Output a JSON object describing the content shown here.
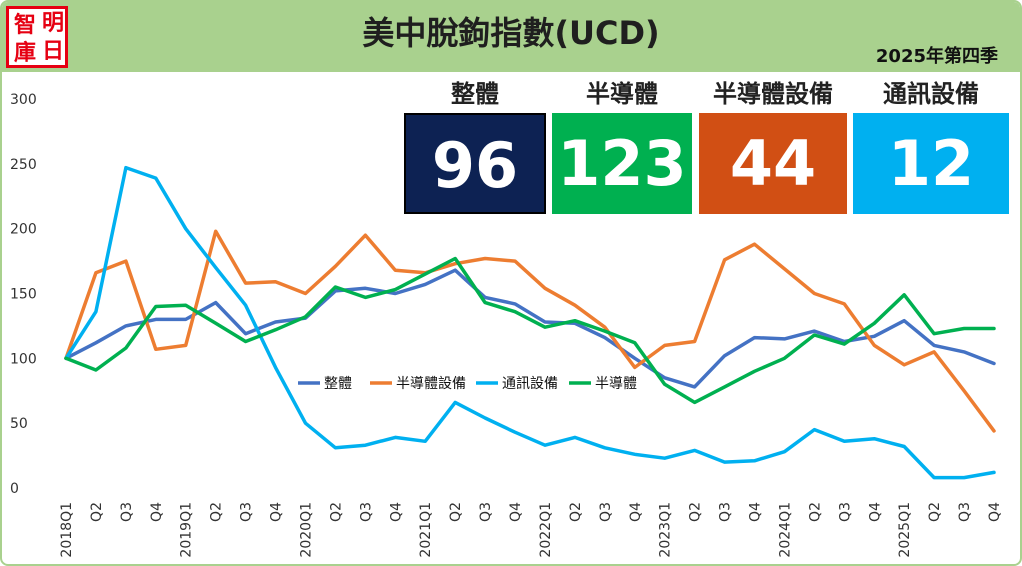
{
  "header": {
    "logo_chars": [
      "明",
      "智",
      "日",
      "庫"
    ],
    "title": "美中脫鉤指數(UCD)",
    "period": "2025年第四季"
  },
  "cards": [
    {
      "label": "整體",
      "value": "96",
      "color": "#0d2253"
    },
    {
      "label": "半導體",
      "value": "123",
      "color": "#00b050"
    },
    {
      "label": "半導體設備",
      "value": "44",
      "color": "#d14f14"
    },
    {
      "label": "通訊設備",
      "value": "12",
      "color": "#00b0f0"
    }
  ],
  "chart_data": {
    "type": "line",
    "x": [
      "2018Q1",
      "Q2",
      "Q3",
      "Q4",
      "2019Q1",
      "Q2",
      "Q3",
      "Q4",
      "2020Q1",
      "Q2",
      "Q3",
      "Q4",
      "2021Q1",
      "Q2",
      "Q3",
      "Q4",
      "2022Q1",
      "Q2",
      "Q3",
      "Q4",
      "2023Q1",
      "Q2",
      "Q3",
      "Q4",
      "2024Q1",
      "Q2",
      "Q3",
      "Q4",
      "2025Q1",
      "Q2",
      "Q3",
      "Q4"
    ],
    "ylim": [
      0,
      300
    ],
    "yticks": [
      0,
      50,
      100,
      150,
      200,
      250,
      300
    ],
    "legend_position": "center-left",
    "series": [
      {
        "name": "整體",
        "color": "#4472c4",
        "values": [
          100,
          112,
          125,
          130,
          130,
          143,
          119,
          128,
          131,
          152,
          154,
          150,
          157,
          168,
          147,
          142,
          128,
          127,
          116,
          100,
          85,
          78,
          102,
          116,
          115,
          121,
          113,
          117,
          129,
          110,
          105,
          96
        ]
      },
      {
        "name": "半導體設備",
        "color": "#ed7d31",
        "values": [
          100,
          166,
          175,
          107,
          110,
          198,
          158,
          159,
          150,
          171,
          195,
          168,
          166,
          173,
          177,
          175,
          154,
          141,
          124,
          93,
          110,
          113,
          176,
          188,
          169,
          150,
          142,
          110,
          95,
          105,
          75,
          44
        ]
      },
      {
        "name": "通訊設備",
        "color": "#00b0f0",
        "values": [
          100,
          136,
          247,
          239,
          200,
          170,
          141,
          93,
          50,
          31,
          33,
          39,
          36,
          66,
          54,
          43,
          33,
          39,
          31,
          26,
          23,
          29,
          20,
          21,
          28,
          45,
          36,
          38,
          32,
          8,
          8,
          12
        ]
      },
      {
        "name": "半導體",
        "color": "#00b050",
        "values": [
          100,
          91,
          108,
          140,
          141,
          127,
          113,
          122,
          132,
          155,
          147,
          153,
          165,
          177,
          143,
          136,
          124,
          129,
          121,
          112,
          80,
          66,
          78,
          90,
          100,
          118,
          111,
          127,
          149,
          119,
          123,
          123
        ]
      }
    ]
  }
}
